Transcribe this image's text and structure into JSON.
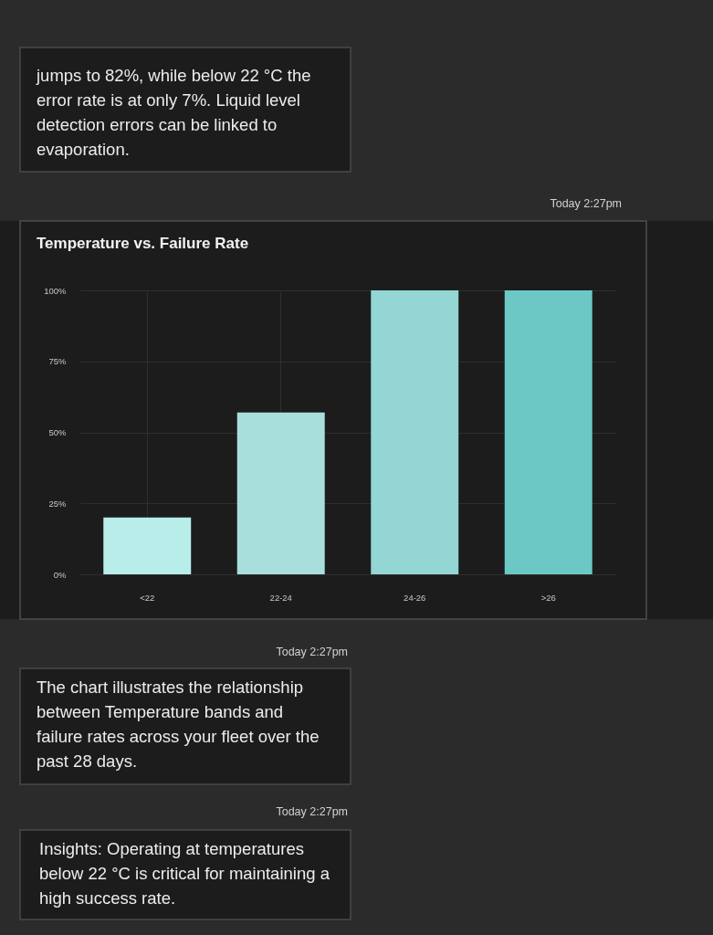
{
  "chart_data": {
    "type": "bar",
    "title": "Temperature vs. Failure Rate",
    "categories": [
      "<22",
      "22-24",
      "24-26",
      ">26"
    ],
    "values": [
      20,
      57,
      100,
      100
    ],
    "colors": [
      "#b9ede9",
      "#a8dfdd",
      "#93d6d3",
      "#6cc8c5"
    ],
    "ylim": [
      0,
      100
    ],
    "yticks": [
      {
        "value": 0,
        "label": "0%"
      },
      {
        "value": 25,
        "label": "25%"
      },
      {
        "value": 50,
        "label": "50%"
      },
      {
        "value": 75,
        "label": "75%"
      },
      {
        "value": 100,
        "label": "100%"
      }
    ],
    "grid": true,
    "annotations": [
      "jumps to 82%, while below 22 °C the error rate is at only 7%. Liquid level detection errors can be linked to evaporation.",
      "Today 2:27pm",
      "Today 2:27pm",
      "The chart illustrates the relationship between Temperature bands and failure rates across your fleet over the past 28 days.",
      "Today 2:27pm",
      "Insights: Operating at temperatures below 22 °C is critical for maintaining a high success rate."
    ]
  }
}
